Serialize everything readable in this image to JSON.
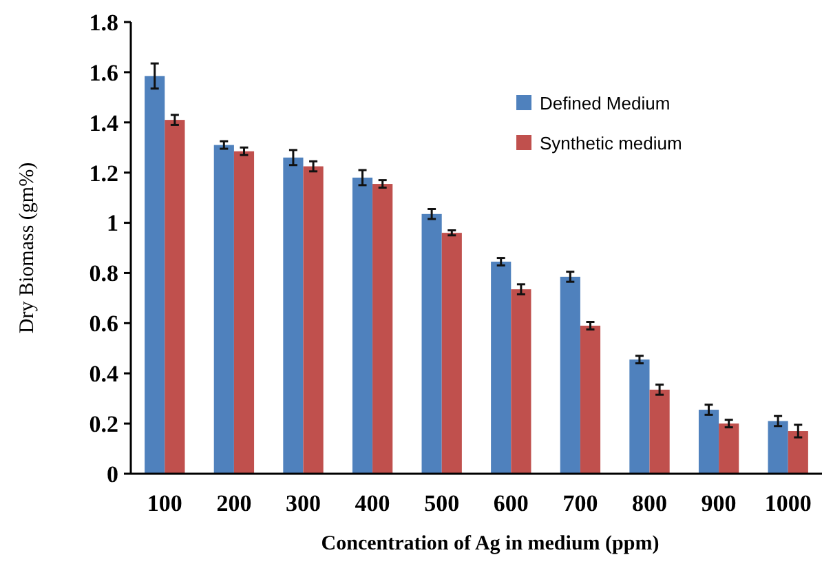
{
  "chart_data": {
    "type": "bar",
    "xlabel": "Concentration of Ag in medium (ppm)",
    "ylabel": "Dry Biomass (gm%)",
    "categories": [
      "100",
      "200",
      "300",
      "400",
      "500",
      "600",
      "700",
      "800",
      "900",
      "1000"
    ],
    "series": [
      {
        "name": "Defined Medium",
        "color": "#4f81bd",
        "values": [
          1.585,
          1.31,
          1.26,
          1.18,
          1.035,
          0.845,
          0.785,
          0.455,
          0.255,
          0.21
        ],
        "errors": [
          0.05,
          0.015,
          0.03,
          0.03,
          0.02,
          0.015,
          0.02,
          0.015,
          0.02,
          0.02
        ]
      },
      {
        "name": "Synthetic medium",
        "color": "#c0504d",
        "values": [
          1.41,
          1.285,
          1.225,
          1.155,
          0.96,
          0.735,
          0.59,
          0.335,
          0.2,
          0.17
        ],
        "errors": [
          0.02,
          0.015,
          0.02,
          0.015,
          0.01,
          0.02,
          0.015,
          0.02,
          0.015,
          0.025
        ]
      }
    ],
    "ylim": [
      0,
      1.8
    ],
    "yticks": [
      0,
      0.2,
      0.4,
      0.6,
      0.8,
      1,
      1.2,
      1.4,
      1.6,
      1.8
    ],
    "grid": false,
    "legend": "top right"
  }
}
